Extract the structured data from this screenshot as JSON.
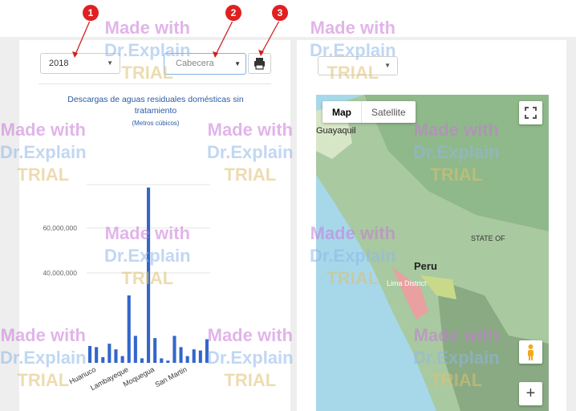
{
  "filters": {
    "year": "2018",
    "province": "Cabecera",
    "print_icon": "print-icon"
  },
  "chart": {
    "title": "Descargas de aguas residuales domésticas sin tratamiento",
    "subtitle": "(Metros cúbicos)"
  },
  "chart_data": {
    "type": "bar",
    "title": "Descargas de aguas residuales domésticas sin tratamiento",
    "ylabel": "(Metros cúbicos)",
    "ytick_labels": [
      "60,000,000",
      "40,000,000"
    ],
    "ylim": [
      0,
      85000000
    ],
    "xtick_labels": [
      "Huanuco",
      "Lambayeque",
      "Moquegua",
      "San Martin"
    ],
    "values": [
      7500000,
      7000000,
      2500000,
      8500000,
      6000000,
      3000000,
      30000000,
      12000000,
      2000000,
      78000000,
      11000000,
      2000000,
      1000000,
      12000000,
      7000000,
      3000000,
      6000000,
      5500000,
      10500000
    ]
  },
  "map": {
    "map_label": "Map",
    "satellite_label": "Satellite",
    "place_guayaquil": "Guayaquil",
    "place_peru": "Peru",
    "place_state": "STATE OF",
    "place_district": "Lima District",
    "fullscreen_icon": "fullscreen-icon",
    "pegman_icon": "pegman-icon",
    "zoom_in": "+"
  },
  "callouts": [
    "1",
    "2",
    "3"
  ],
  "watermark": {
    "line1": "Made with",
    "line2": "Dr.Explain",
    "line3": "TRIAL"
  }
}
